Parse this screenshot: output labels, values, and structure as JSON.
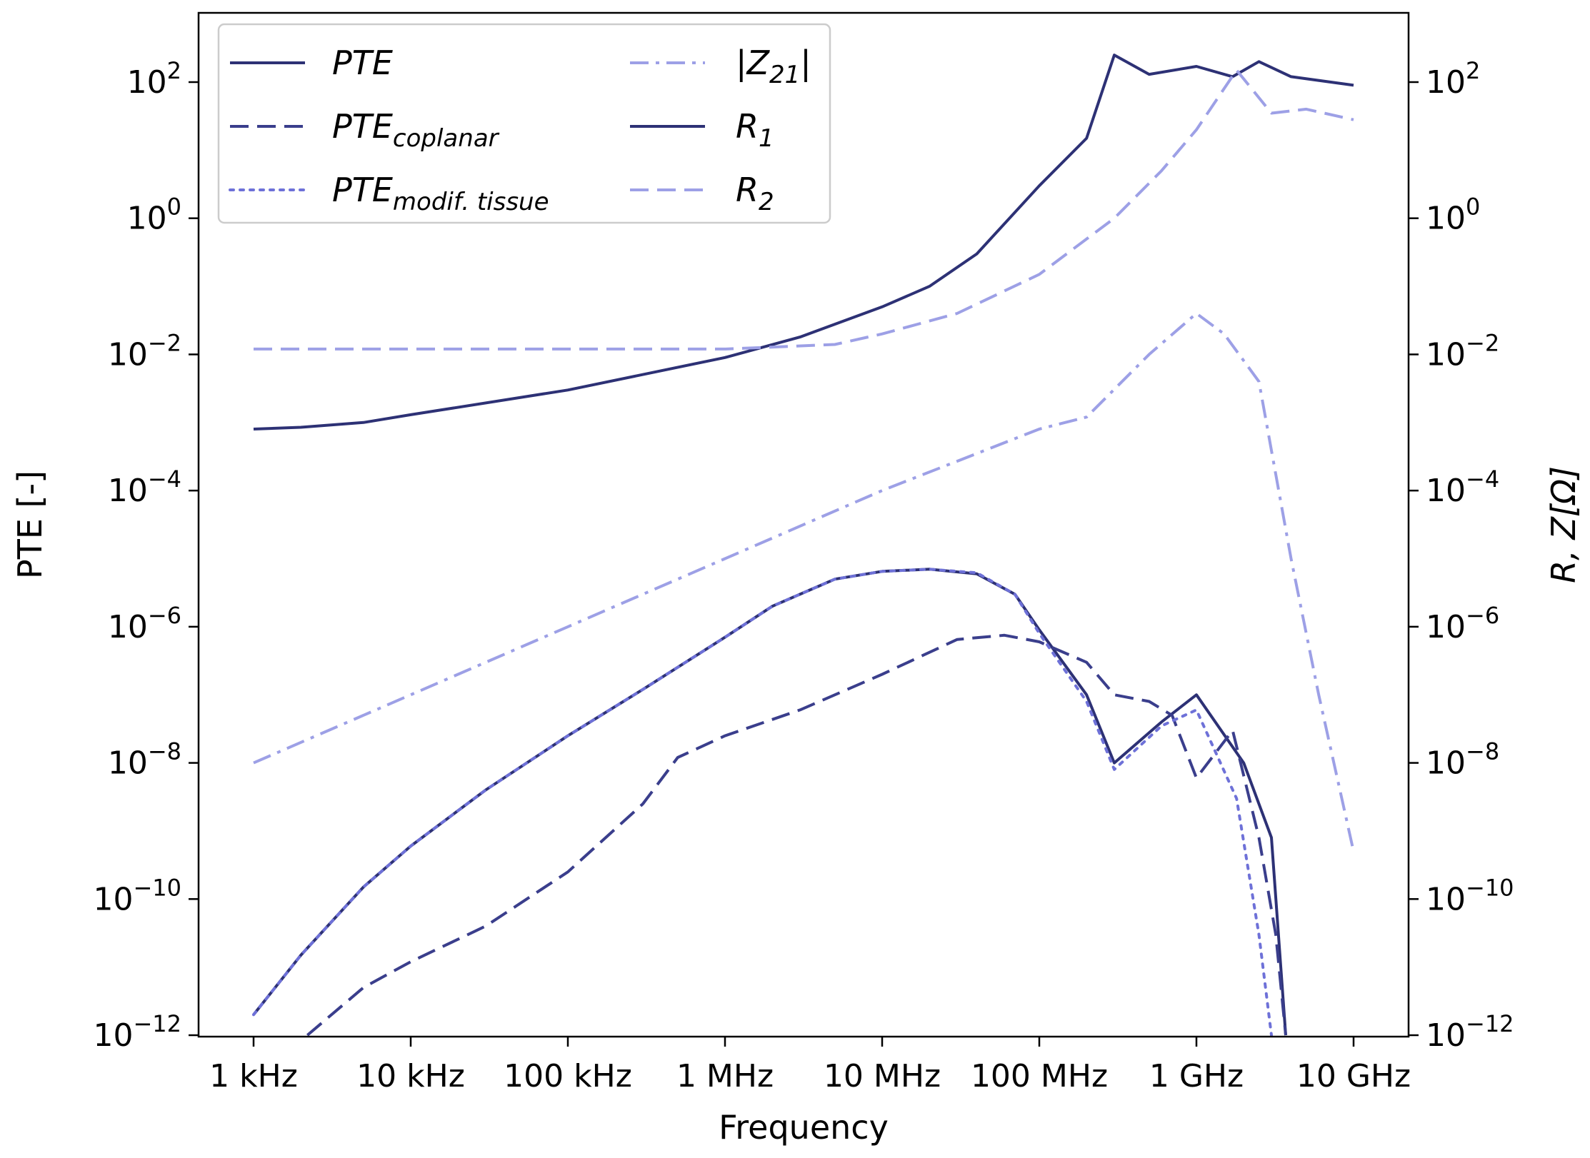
{
  "chart_data": {
    "type": "line",
    "title": "",
    "xlabel": "Frequency",
    "ylabel_left": "PTE [-]",
    "ylabel_right": "R, Z[Ω]",
    "x_scale": "log",
    "y_scale": "log",
    "xlim": [
      1000,
      10000000000
    ],
    "ylim": [
      1e-12,
      1000
    ],
    "x_ticks": [
      {
        "value": 1000,
        "label": "1 kHz"
      },
      {
        "value": 10000,
        "label": "10 kHz"
      },
      {
        "value": 100000,
        "label": "100 kHz"
      },
      {
        "value": 1000000,
        "label": "1 MHz"
      },
      {
        "value": 10000000,
        "label": "10 MHz"
      },
      {
        "value": 100000000,
        "label": "100 MHz"
      },
      {
        "value": 1000000000,
        "label": "1 GHz"
      },
      {
        "value": 10000000000,
        "label": "10 GHz"
      }
    ],
    "y_ticks": [
      {
        "exp": 2,
        "base": "10",
        "sup": "2"
      },
      {
        "exp": 0,
        "base": "10",
        "sup": "0"
      },
      {
        "exp": -2,
        "base": "10",
        "sup": "−2"
      },
      {
        "exp": -4,
        "base": "10",
        "sup": "−4"
      },
      {
        "exp": -6,
        "base": "10",
        "sup": "−6"
      },
      {
        "exp": -8,
        "base": "10",
        "sup": "−8"
      },
      {
        "exp": -10,
        "base": "10",
        "sup": "−10"
      },
      {
        "exp": -12,
        "base": "10",
        "sup": "−12"
      }
    ],
    "legend": {
      "placement": "top-left",
      "entries": [
        {
          "series": "pte",
          "main": "PTE",
          "sub": ""
        },
        {
          "series": "pte_coplanar",
          "main": "PTE",
          "sub": "coplanar"
        },
        {
          "series": "pte_modif",
          "main": "PTE",
          "sub": "modif. tissue"
        },
        {
          "series": "z21",
          "main": "|Z",
          "sub": "21",
          "suffix": "|"
        },
        {
          "series": "r1",
          "main": "R",
          "sub": "1"
        },
        {
          "series": "r2",
          "main": "R",
          "sub": "2"
        }
      ]
    },
    "series": [
      {
        "id": "pte",
        "name": "PTE",
        "color": "#2d3175",
        "style": "solid",
        "axis": "left",
        "x": [
          1000,
          2000,
          5000,
          10000,
          30000,
          100000,
          300000,
          1000000,
          2000000,
          5000000,
          10000000,
          20000000,
          40000000,
          70000000,
          100000000,
          200000000,
          300000000,
          600000000,
          1000000000,
          2000000000,
          3000000000,
          3700000000
        ],
        "y": [
          2e-12,
          1.5e-11,
          1.5e-10,
          6e-10,
          4e-09,
          2.5e-08,
          1.2e-07,
          7e-07,
          2e-06,
          5e-06,
          6.5e-06,
          7e-06,
          6e-06,
          3e-06,
          9e-07,
          1e-07,
          1e-08,
          4e-08,
          1e-07,
          1e-08,
          8e-10,
          1e-12
        ]
      },
      {
        "id": "pte_coplanar",
        "name": "PTE coplanar",
        "color": "#3a3e8c",
        "style": "dashed",
        "axis": "left",
        "x": [
          2200,
          5000,
          10000,
          30000,
          100000,
          300000,
          500000,
          1000000,
          3000000,
          10000000,
          30000000,
          60000000,
          100000000,
          200000000,
          300000000,
          500000000,
          700000000,
          1000000000,
          1700000000,
          2500000000,
          3200000000,
          3700000000
        ],
        "y": [
          1e-12,
          5e-12,
          1.2e-11,
          4e-11,
          2.5e-10,
          2.5e-09,
          1.2e-08,
          2.5e-08,
          6e-08,
          2e-07,
          6.5e-07,
          7.5e-07,
          6e-07,
          3e-07,
          1e-07,
          8e-08,
          5e-08,
          6e-09,
          3e-08,
          8e-10,
          3e-11,
          1e-12
        ]
      },
      {
        "id": "pte_modif",
        "name": "PTE modif. tissue",
        "color": "#6e71d8",
        "style": "dotted",
        "axis": "left",
        "x": [
          1000,
          2000,
          5000,
          10000,
          30000,
          100000,
          300000,
          1000000,
          2000000,
          5000000,
          10000000,
          20000000,
          40000000,
          70000000,
          100000000,
          200000000,
          300000000,
          600000000,
          1000000000,
          1800000000,
          2500000000,
          3000000000
        ],
        "y": [
          2e-12,
          1.5e-11,
          1.5e-10,
          6e-10,
          4e-09,
          2.5e-08,
          1.2e-07,
          7e-07,
          2e-06,
          5e-06,
          6.5e-06,
          7e-06,
          6.2e-06,
          3e-06,
          8e-07,
          8e-08,
          8e-09,
          3.5e-08,
          6e-08,
          3e-09,
          3e-11,
          1e-12
        ]
      },
      {
        "id": "z21",
        "name": "|Z21|",
        "color": "#9da0e6",
        "style": "dashdot",
        "axis": "right",
        "x": [
          1000,
          10000,
          100000,
          1000000,
          10000000,
          100000000,
          200000000,
          500000000,
          1000000000,
          1500000000,
          2500000000,
          4000000000,
          6000000000,
          10000000000
        ],
        "y": [
          1e-08,
          1e-07,
          1e-06,
          1e-05,
          0.0001,
          0.0008,
          0.0012,
          0.01,
          0.04,
          0.02,
          0.004,
          1e-05,
          1e-07,
          5e-10
        ]
      },
      {
        "id": "r1",
        "name": "R1",
        "color": "#2d3175",
        "style": "solid",
        "axis": "right",
        "x": [
          1000,
          2000,
          5000,
          10000,
          100000,
          1000000,
          3000000,
          10000000,
          20000000,
          40000000,
          100000000,
          200000000,
          300000000,
          500000000,
          1000000000,
          1700000000,
          2500000000,
          4000000000,
          10000000000
        ],
        "y": [
          0.0008,
          0.00085,
          0.001,
          0.0013,
          0.003,
          0.009,
          0.018,
          0.05,
          0.1,
          0.3,
          3,
          15,
          250,
          130,
          170,
          120,
          200,
          120,
          90
        ]
      },
      {
        "id": "r2",
        "name": "R2",
        "color": "#9da0e6",
        "style": "dashed",
        "axis": "right",
        "x": [
          1000,
          100000,
          1000000,
          5000000,
          10000000,
          30000000,
          100000000,
          300000000,
          600000000,
          1000000000,
          1800000000,
          3000000000,
          5000000000,
          10000000000
        ],
        "y": [
          0.012,
          0.012,
          0.012,
          0.014,
          0.02,
          0.04,
          0.15,
          1,
          5,
          20,
          150,
          35,
          40,
          28
        ]
      }
    ]
  }
}
